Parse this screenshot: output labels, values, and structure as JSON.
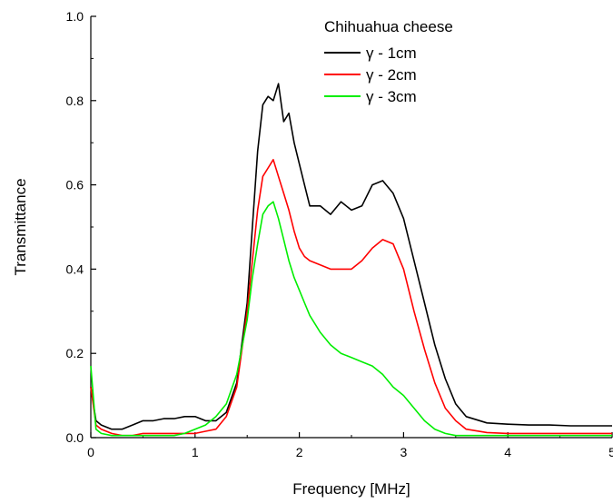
{
  "chart_data": {
    "type": "line",
    "title": "",
    "xlabel": "Frequency [MHz]",
    "ylabel": "Transmittance",
    "xlim": [
      0,
      5
    ],
    "ylim": [
      0,
      1.0
    ],
    "x_ticks": [
      0,
      1,
      2,
      3,
      4,
      5
    ],
    "x_tick_labels": [
      "0",
      "1",
      "2",
      "3",
      "4",
      "5"
    ],
    "y_ticks": [
      0.0,
      0.2,
      0.4,
      0.6,
      0.8,
      1.0
    ],
    "y_tick_labels": [
      "0.0",
      "0.2",
      "0.4",
      "0.6",
      "0.8",
      "1.0"
    ],
    "grid": false,
    "legend": {
      "title": "Chihuahua cheese",
      "placement": "top-right"
    },
    "x": [
      0.0,
      0.05,
      0.1,
      0.2,
      0.3,
      0.4,
      0.5,
      0.6,
      0.7,
      0.8,
      0.9,
      1.0,
      1.1,
      1.2,
      1.3,
      1.4,
      1.5,
      1.55,
      1.6,
      1.65,
      1.7,
      1.75,
      1.8,
      1.85,
      1.9,
      1.95,
      2.0,
      2.05,
      2.1,
      2.2,
      2.3,
      2.4,
      2.5,
      2.6,
      2.7,
      2.8,
      2.9,
      3.0,
      3.1,
      3.2,
      3.3,
      3.4,
      3.5,
      3.6,
      3.8,
      4.0,
      4.2,
      4.4,
      4.6,
      4.8,
      5.0
    ],
    "series": [
      {
        "name": "γ - 1cm",
        "color": "#000000",
        "values": [
          0.12,
          0.04,
          0.03,
          0.02,
          0.02,
          0.03,
          0.04,
          0.04,
          0.045,
          0.045,
          0.05,
          0.05,
          0.04,
          0.04,
          0.06,
          0.13,
          0.32,
          0.5,
          0.68,
          0.79,
          0.81,
          0.8,
          0.84,
          0.75,
          0.77,
          0.7,
          0.65,
          0.6,
          0.55,
          0.55,
          0.53,
          0.56,
          0.54,
          0.55,
          0.6,
          0.61,
          0.58,
          0.52,
          0.42,
          0.32,
          0.22,
          0.14,
          0.08,
          0.05,
          0.035,
          0.032,
          0.03,
          0.03,
          0.028,
          0.028,
          0.028
        ]
      },
      {
        "name": "γ - 2cm",
        "color": "#ff0000",
        "values": [
          0.12,
          0.03,
          0.02,
          0.01,
          0.005,
          0.005,
          0.01,
          0.01,
          0.01,
          0.01,
          0.01,
          0.01,
          0.015,
          0.02,
          0.05,
          0.12,
          0.3,
          0.42,
          0.54,
          0.62,
          0.64,
          0.66,
          0.62,
          0.58,
          0.54,
          0.49,
          0.45,
          0.43,
          0.42,
          0.41,
          0.4,
          0.4,
          0.4,
          0.42,
          0.45,
          0.47,
          0.46,
          0.4,
          0.3,
          0.21,
          0.13,
          0.07,
          0.04,
          0.02,
          0.012,
          0.01,
          0.01,
          0.01,
          0.01,
          0.01,
          0.01
        ]
      },
      {
        "name": "γ - 3cm",
        "color": "#00ee00",
        "values": [
          0.17,
          0.02,
          0.01,
          0.005,
          0.005,
          0.005,
          0.005,
          0.005,
          0.005,
          0.005,
          0.01,
          0.02,
          0.03,
          0.05,
          0.08,
          0.15,
          0.28,
          0.38,
          0.46,
          0.53,
          0.55,
          0.56,
          0.52,
          0.47,
          0.42,
          0.38,
          0.35,
          0.32,
          0.29,
          0.25,
          0.22,
          0.2,
          0.19,
          0.18,
          0.17,
          0.15,
          0.12,
          0.1,
          0.07,
          0.04,
          0.02,
          0.01,
          0.005,
          0.005,
          0.005,
          0.005,
          0.005,
          0.005,
          0.005,
          0.005,
          0.005
        ]
      }
    ]
  }
}
